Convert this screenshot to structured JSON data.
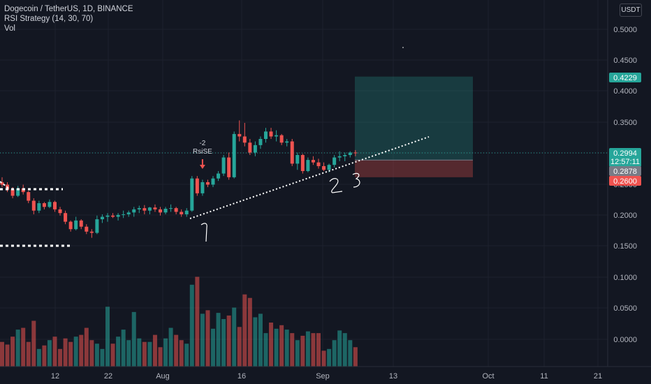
{
  "header": {
    "symbol": "Dogecoin / TetherUS, 1D, BINANCE",
    "indicator": "RSI Strategy (14, 30, 70)",
    "volume": "Vol"
  },
  "currency_label": "USDT",
  "signal": {
    "count": "-2",
    "name": "RsiSE"
  },
  "annotations": {
    "one": "1",
    "two": "2",
    "three": "3"
  },
  "price_tags": {
    "target": "0.4229",
    "last": "0.2994",
    "countdown": "12:57:11",
    "entry": "0.2878",
    "stop": "0.2600"
  },
  "chart_data": {
    "type": "candlestick",
    "y_ticks": [
      "0.5000",
      "0.4500",
      "0.4000",
      "0.3500",
      "0.3000",
      "0.2500",
      "0.2000",
      "0.1500",
      "0.1000",
      "0.0500",
      "0.0000"
    ],
    "x_ticks": [
      "12",
      "22",
      "Aug",
      "16",
      "Sep",
      "13",
      "Oct",
      "11",
      "21"
    ],
    "ylim": [
      0.0,
      0.5
    ],
    "candles": [
      [
        0.252,
        0.26,
        0.244,
        0.248
      ],
      [
        0.248,
        0.252,
        0.236,
        0.24
      ],
      [
        0.24,
        0.244,
        0.226,
        0.23
      ],
      [
        0.23,
        0.246,
        0.228,
        0.242
      ],
      [
        0.242,
        0.248,
        0.232,
        0.236
      ],
      [
        0.236,
        0.238,
        0.218,
        0.222
      ],
      [
        0.222,
        0.226,
        0.2,
        0.206
      ],
      [
        0.206,
        0.222,
        0.202,
        0.218
      ],
      [
        0.218,
        0.22,
        0.208,
        0.212
      ],
      [
        0.212,
        0.224,
        0.21,
        0.22
      ],
      [
        0.22,
        0.222,
        0.204,
        0.208
      ],
      [
        0.208,
        0.212,
        0.198,
        0.202
      ],
      [
        0.202,
        0.206,
        0.184,
        0.188
      ],
      [
        0.188,
        0.19,
        0.172,
        0.176
      ],
      [
        0.176,
        0.196,
        0.174,
        0.19
      ],
      [
        0.19,
        0.192,
        0.176,
        0.18
      ],
      [
        0.18,
        0.184,
        0.168,
        0.172
      ],
      [
        0.172,
        0.176,
        0.162,
        0.17
      ],
      [
        0.17,
        0.198,
        0.168,
        0.192
      ],
      [
        0.192,
        0.2,
        0.186,
        0.196
      ],
      [
        0.196,
        0.202,
        0.188,
        0.198
      ],
      [
        0.198,
        0.202,
        0.194,
        0.196
      ],
      [
        0.196,
        0.202,
        0.19,
        0.199
      ],
      [
        0.199,
        0.206,
        0.194,
        0.2
      ],
      [
        0.2,
        0.206,
        0.196,
        0.203
      ],
      [
        0.203,
        0.212,
        0.196,
        0.208
      ],
      [
        0.208,
        0.214,
        0.202,
        0.21
      ],
      [
        0.21,
        0.215,
        0.2,
        0.206
      ],
      [
        0.206,
        0.212,
        0.2,
        0.211
      ],
      [
        0.211,
        0.216,
        0.204,
        0.208
      ],
      [
        0.208,
        0.212,
        0.198,
        0.203
      ],
      [
        0.203,
        0.212,
        0.2,
        0.209
      ],
      [
        0.209,
        0.216,
        0.204,
        0.21
      ],
      [
        0.21,
        0.212,
        0.2,
        0.204
      ],
      [
        0.204,
        0.208,
        0.196,
        0.2
      ],
      [
        0.2,
        0.21,
        0.196,
        0.206
      ],
      [
        0.206,
        0.262,
        0.204,
        0.258
      ],
      [
        0.258,
        0.262,
        0.23,
        0.234
      ],
      [
        0.234,
        0.256,
        0.23,
        0.252
      ],
      [
        0.252,
        0.256,
        0.244,
        0.248
      ],
      [
        0.248,
        0.262,
        0.244,
        0.258
      ],
      [
        0.258,
        0.27,
        0.254,
        0.266
      ],
      [
        0.266,
        0.296,
        0.262,
        0.292
      ],
      [
        0.292,
        0.3,
        0.256,
        0.26
      ],
      [
        0.26,
        0.334,
        0.258,
        0.33
      ],
      [
        0.33,
        0.352,
        0.318,
        0.326
      ],
      [
        0.326,
        0.348,
        0.31,
        0.316
      ],
      [
        0.316,
        0.322,
        0.296,
        0.3
      ],
      [
        0.3,
        0.318,
        0.294,
        0.312
      ],
      [
        0.312,
        0.326,
        0.306,
        0.322
      ],
      [
        0.322,
        0.34,
        0.316,
        0.334
      ],
      [
        0.334,
        0.34,
        0.322,
        0.326
      ],
      [
        0.326,
        0.336,
        0.318,
        0.328
      ],
      [
        0.328,
        0.33,
        0.312,
        0.316
      ],
      [
        0.316,
        0.322,
        0.31,
        0.318
      ],
      [
        0.318,
        0.322,
        0.278,
        0.282
      ],
      [
        0.282,
        0.3,
        0.272,
        0.296
      ],
      [
        0.296,
        0.298,
        0.266,
        0.27
      ],
      [
        0.27,
        0.292,
        0.268,
        0.288
      ],
      [
        0.288,
        0.294,
        0.28,
        0.284
      ],
      [
        0.284,
        0.29,
        0.274,
        0.278
      ],
      [
        0.278,
        0.284,
        0.27,
        0.272
      ],
      [
        0.272,
        0.282,
        0.268,
        0.28
      ],
      [
        0.28,
        0.296,
        0.276,
        0.292
      ],
      [
        0.292,
        0.302,
        0.286,
        0.294
      ],
      [
        0.294,
        0.3,
        0.286,
        0.296
      ],
      [
        0.296,
        0.302,
        0.292,
        0.3
      ],
      [
        0.3,
        0.304,
        0.294,
        0.299
      ]
    ],
    "volumes": [
      0.028,
      0.025,
      0.034,
      0.042,
      0.044,
      0.028,
      0.052,
      0.02,
      0.024,
      0.03,
      0.034,
      0.02,
      0.032,
      0.028,
      0.034,
      0.036,
      0.044,
      0.03,
      0.026,
      0.02,
      0.068,
      0.026,
      0.034,
      0.042,
      0.03,
      0.062,
      0.032,
      0.028,
      0.028,
      0.036,
      0.022,
      0.032,
      0.044,
      0.036,
      0.03,
      0.026,
      0.093,
      0.102,
      0.06,
      0.064,
      0.043,
      0.061,
      0.054,
      0.058,
      0.067,
      0.045,
      0.082,
      0.078,
      0.056,
      0.06,
      0.038,
      0.05,
      0.043,
      0.047,
      0.042,
      0.038,
      0.03,
      0.035,
      0.04,
      0.038,
      0.038,
      0.018,
      0.02,
      0.03,
      0.041,
      0.038,
      0.03,
      0.022
    ],
    "position": {
      "target": 0.4229,
      "entry": 0.2878,
      "stop": 0.26
    },
    "trendline": {
      "from": [
        36,
        0.195
      ],
      "to": [
        84,
        0.328
      ]
    },
    "support_lines": [
      0.24,
      0.153
    ]
  }
}
